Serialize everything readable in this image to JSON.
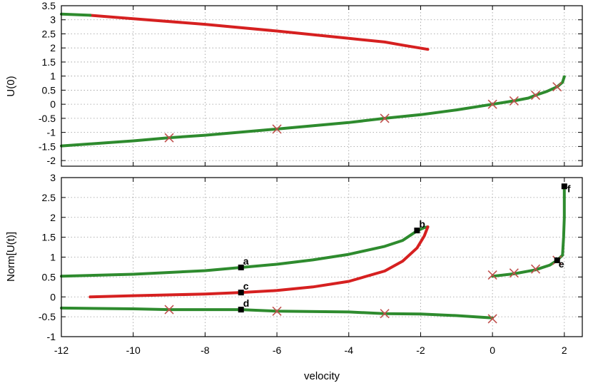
{
  "chart_data": [
    {
      "type": "line",
      "ylabel": "U(0)",
      "xlim": [
        -12,
        2.5
      ],
      "ylim": [
        -2.2,
        3.5
      ],
      "yticks": [
        -2,
        -1.5,
        -1,
        -0.5,
        0,
        0.5,
        1,
        1.5,
        2,
        2.5,
        3,
        3.5
      ],
      "grid": true,
      "series": [
        {
          "color": "#d62020",
          "points": [
            [
              -11.2,
              3.16
            ],
            [
              -10,
              3.04
            ],
            [
              -8,
              2.84
            ],
            [
              -6,
              2.6
            ],
            [
              -4,
              2.34
            ],
            [
              -3,
              2.21
            ],
            [
              -2.5,
              2.1
            ],
            [
              -1.8,
              1.95
            ]
          ]
        },
        {
          "color": "#2e8b2e",
          "points": [
            [
              -12,
              3.2
            ],
            [
              -11.2,
              3.16
            ]
          ]
        },
        {
          "color": "#2e8b2e",
          "points": [
            [
              -12,
              -1.48
            ],
            [
              -10,
              -1.3
            ],
            [
              -9,
              -1.19
            ],
            [
              -8,
              -1.1
            ],
            [
              -6,
              -0.88
            ],
            [
              -4,
              -0.65
            ],
            [
              -3,
              -0.5
            ],
            [
              -2,
              -0.37
            ],
            [
              -1,
              -0.2
            ],
            [
              0,
              0
            ],
            [
              0.6,
              0.12
            ],
            [
              1,
              0.22
            ],
            [
              1.2,
              0.32
            ],
            [
              1.5,
              0.45
            ],
            [
              1.8,
              0.62
            ],
            [
              1.95,
              0.78
            ],
            [
              2,
              0.98
            ]
          ]
        }
      ],
      "markers": [
        [
          -9,
          -1.19
        ],
        [
          -6,
          -0.88
        ],
        [
          -3,
          -0.5
        ],
        [
          0,
          0
        ],
        [
          0.6,
          0.12
        ],
        [
          1.2,
          0.32
        ],
        [
          1.8,
          0.62
        ]
      ],
      "marker_color": "#c0504d"
    },
    {
      "type": "line",
      "xlabel": "velocity",
      "ylabel": "Norm[U(t)]",
      "xlim": [
        -12,
        2.5
      ],
      "ylim": [
        -1,
        3
      ],
      "xticks": [
        -12,
        -10,
        -8,
        -6,
        -4,
        -2,
        0,
        2
      ],
      "yticks": [
        -1,
        -0.5,
        0,
        0.5,
        1,
        1.5,
        2,
        2.5,
        3
      ],
      "grid": true,
      "series": [
        {
          "color": "#2e8b2e",
          "points": [
            [
              -12,
              0.52
            ],
            [
              -10,
              0.57
            ],
            [
              -8,
              0.66
            ],
            [
              -7,
              0.74
            ],
            [
              -6,
              0.82
            ],
            [
              -5,
              0.93
            ],
            [
              -4,
              1.07
            ],
            [
              -3,
              1.27
            ],
            [
              -2.5,
              1.42
            ],
            [
              -2.1,
              1.66
            ],
            [
              -1.9,
              1.74
            ],
            [
              -1.8,
              1.76
            ]
          ]
        },
        {
          "color": "#d62020",
          "points": [
            [
              -11.2,
              0.0
            ],
            [
              -10,
              0.03
            ],
            [
              -8,
              0.07
            ],
            [
              -7,
              0.11
            ],
            [
              -6,
              0.16
            ],
            [
              -5,
              0.25
            ],
            [
              -4,
              0.39
            ],
            [
              -3,
              0.65
            ],
            [
              -2.5,
              0.9
            ],
            [
              -2.1,
              1.23
            ],
            [
              -1.9,
              1.53
            ],
            [
              -1.8,
              1.76
            ]
          ]
        },
        {
          "color": "#2e8b2e",
          "points": [
            [
              -12,
              -0.28
            ],
            [
              -10,
              -0.3
            ],
            [
              -9,
              -0.32
            ],
            [
              -7,
              -0.32
            ],
            [
              -6,
              -0.36
            ],
            [
              -4,
              -0.38
            ],
            [
              -3,
              -0.42
            ],
            [
              -2,
              -0.43
            ],
            [
              -1,
              -0.47
            ],
            [
              0,
              -0.53
            ]
          ]
        },
        {
          "color": "#2e8b2e",
          "points": [
            [
              0,
              0.52
            ],
            [
              0.6,
              0.58
            ],
            [
              1.2,
              0.68
            ],
            [
              1.6,
              0.8
            ],
            [
              1.8,
              0.92
            ],
            [
              1.95,
              1.05
            ],
            [
              1.98,
              1.5
            ],
            [
              2,
              2.0
            ],
            [
              2,
              2.78
            ]
          ]
        }
      ],
      "markers": [
        [
          -9,
          -0.32
        ],
        [
          -6,
          -0.36
        ],
        [
          -3,
          -0.42
        ],
        [
          0,
          -0.55
        ],
        [
          0,
          0.55
        ],
        [
          0.6,
          0.6
        ],
        [
          1.2,
          0.7
        ],
        [
          1.8,
          0.92
        ]
      ],
      "marker_color": "#c0504d",
      "labeled_points": [
        {
          "label": "a",
          "x": -7,
          "y": 0.74
        },
        {
          "label": "b",
          "x": -2.1,
          "y": 1.67
        },
        {
          "label": "c",
          "x": -7,
          "y": 0.11
        },
        {
          "label": "d",
          "x": -7,
          "y": -0.32
        },
        {
          "label": "e",
          "x": 1.8,
          "y": 0.92
        },
        {
          "label": "f",
          "x": 2.0,
          "y": 2.78
        }
      ]
    }
  ]
}
